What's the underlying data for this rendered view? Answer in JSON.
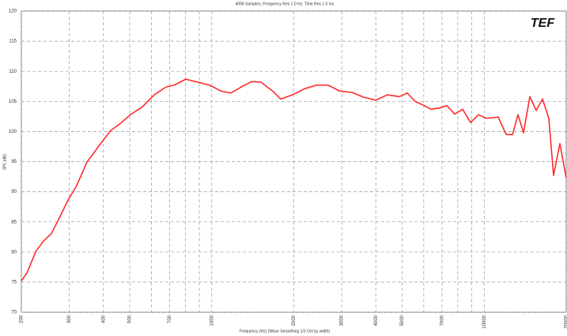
{
  "chart_data": {
    "type": "line",
    "title": "4096 Samples, Frequency Res 1.0 Hz, Time Res 1.0 ms",
    "logo": "TEF",
    "xlabel": "Frequency (Hz) (Wave Smoothing 1/3 Oct by width)",
    "ylabel": "SPL (dB)",
    "xscale": "log",
    "xlim": [
      200,
      20000
    ],
    "xticks": [
      200,
      300,
      400,
      500,
      700,
      1000,
      2000,
      3000,
      4000,
      5000,
      7000,
      10000,
      20000
    ],
    "xminor": [
      600,
      800,
      900,
      6000,
      8000,
      9000
    ],
    "ylim": [
      70,
      120
    ],
    "yticks": [
      70,
      75,
      80,
      85,
      90,
      95,
      100,
      105,
      110,
      115,
      120
    ],
    "grid": true,
    "x": [
      200,
      210,
      226,
      241,
      258,
      276,
      295,
      319,
      348,
      385,
      426,
      455,
      503,
      556,
      615,
      680,
      727,
      803,
      888,
      982,
      1085,
      1175,
      1282,
      1399,
      1515,
      1675,
      1791,
      1980,
      2188,
      2419,
      2675,
      2956,
      3268,
      3613,
      3994,
      4416,
      4881,
      5219,
      5580,
      5966,
      6378,
      6820,
      7291,
      7795,
      8334,
      8911,
      9527,
      10185,
      11260,
      12040,
      12700,
      13306,
      13945,
      14710,
      15517,
      16370,
      17270,
      17970,
      18960,
      20000
    ],
    "series": [
      {
        "name": "Response",
        "color": "#ff2b2b",
        "values": [
          75.2,
          76.6,
          80.1,
          81.8,
          83.1,
          85.7,
          88.4,
          91,
          94.9,
          97.6,
          100.2,
          101.1,
          102.8,
          104.1,
          106.1,
          107.4,
          107.7,
          108.7,
          108.2,
          107.7,
          106.7,
          106.4,
          107.4,
          108.3,
          108.2,
          106.7,
          105.4,
          106.1,
          107.1,
          107.7,
          107.7,
          106.7,
          106.5,
          105.7,
          105.2,
          106.1,
          105.8,
          106.4,
          105,
          104.4,
          103.7,
          103.9,
          104.3,
          102.9,
          103.7,
          101.5,
          102.8,
          102.2,
          102.4,
          99.5,
          99.5,
          102.8,
          99.8,
          105.8,
          103.5,
          105.4,
          102.2,
          92.7,
          98,
          92.3
        ]
      }
    ]
  }
}
